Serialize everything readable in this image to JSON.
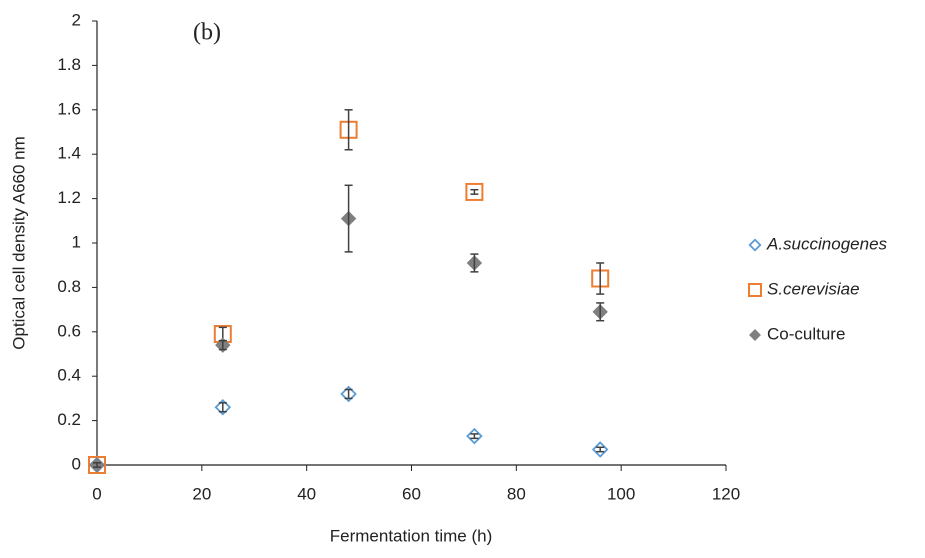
{
  "chart_data": {
    "type": "scatter",
    "annotation": "(b)",
    "x_label": "Fermentation time (h)",
    "y_label": "Optical cell density A660 nm",
    "x": [
      0,
      24,
      48,
      72,
      96
    ],
    "xlim": [
      0,
      120
    ],
    "xticks": [
      0,
      20,
      40,
      60,
      80,
      100,
      120
    ],
    "ylim": [
      0,
      2
    ],
    "yticks": [
      0,
      0.2,
      0.4,
      0.6,
      0.8,
      1,
      1.2,
      1.4,
      1.6,
      1.8,
      2
    ],
    "grid": false,
    "legend": "right",
    "series": [
      {
        "name": "A.succinogenes",
        "color": "#5b9bd5",
        "marker": "diamond-open",
        "values": [
          0,
          0.26,
          0.32,
          0.13,
          0.07
        ],
        "errors": [
          0.01,
          0.02,
          0.02,
          0.01,
          0.01
        ]
      },
      {
        "name": "S.cerevisiae",
        "color": "#ed7d31",
        "marker": "square-open",
        "values": [
          0,
          0.59,
          1.51,
          1.23,
          0.84
        ],
        "errors": [
          0.01,
          0.03,
          0.09,
          0.01,
          0.07
        ]
      },
      {
        "name": "Co-culture",
        "color": "#7f7f7f",
        "marker": "diamond-filled",
        "values": [
          0,
          0.54,
          1.11,
          0.91,
          0.69
        ],
        "errors": [
          0.01,
          0.02,
          0.15,
          0.04,
          0.04
        ]
      }
    ]
  }
}
